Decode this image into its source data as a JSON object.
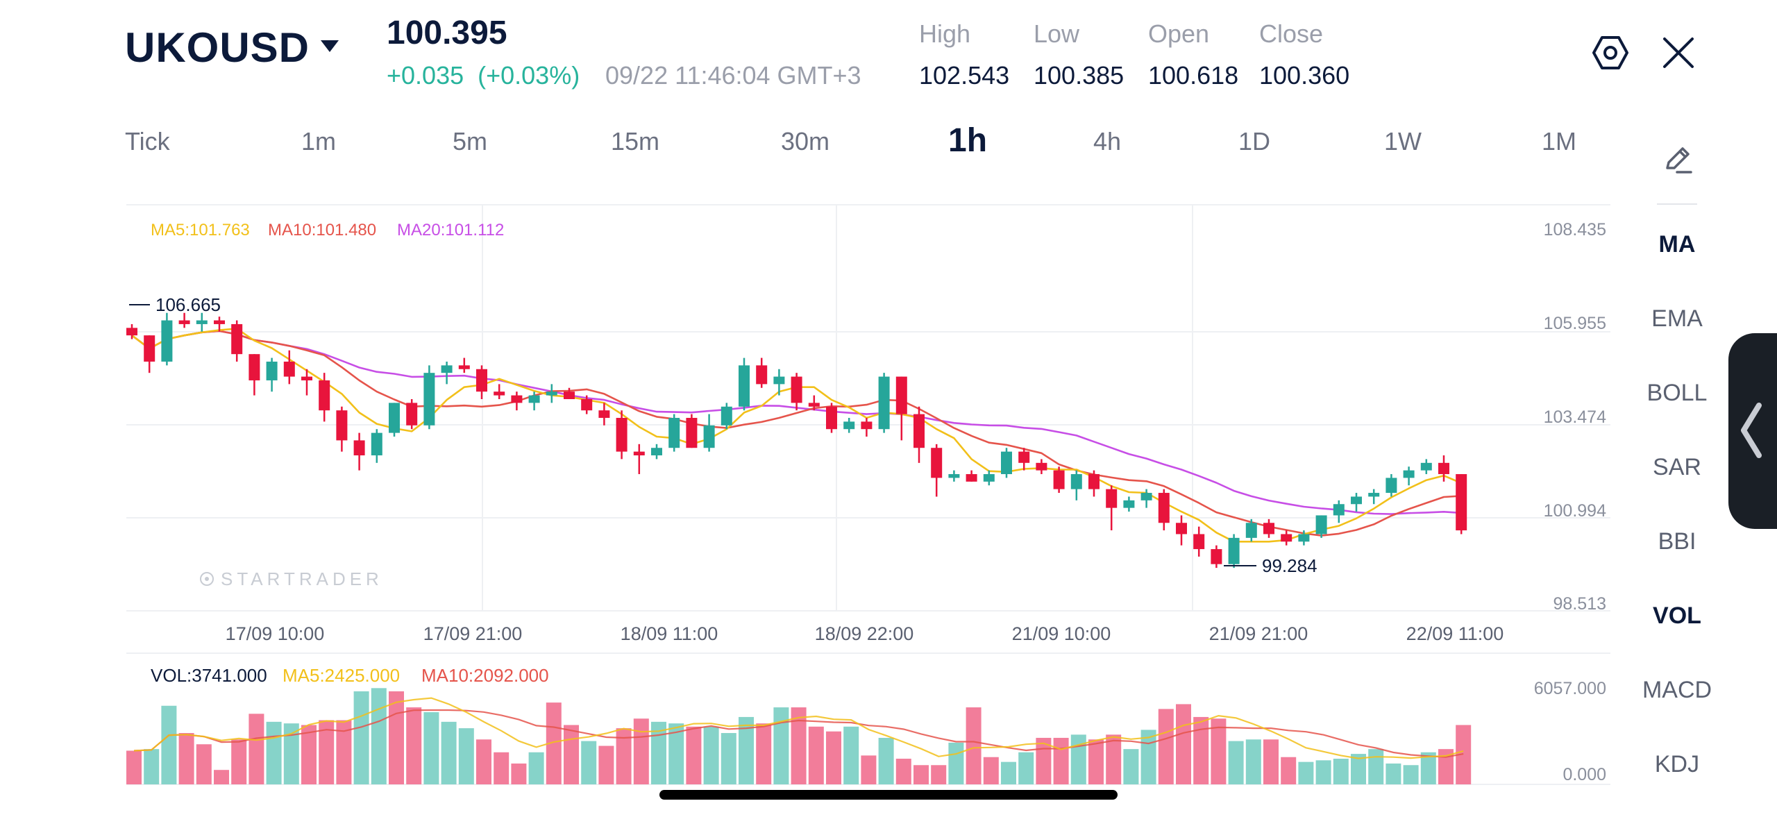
{
  "header": {
    "symbol": "UKOUSD",
    "price": "100.395",
    "change": "+0.035  (+0.03%)",
    "datetime": "09/22 11:46:04 GMT+3",
    "stats": [
      {
        "label": "High",
        "value": "102.543"
      },
      {
        "label": "Low",
        "value": "100.385"
      },
      {
        "label": "Open",
        "value": "100.618"
      },
      {
        "label": "Close",
        "value": "100.360"
      }
    ]
  },
  "timeframes": [
    "Tick",
    "1m",
    "5m",
    "15m",
    "30m",
    "1h",
    "4h",
    "1D",
    "1W",
    "1M"
  ],
  "active_timeframe": "1h",
  "indicators": [
    "MA",
    "EMA",
    "BOLL",
    "SAR",
    "BBI",
    "VOL",
    "MACD",
    "KDJ"
  ],
  "active_indicators": [
    "MA",
    "VOL"
  ],
  "colors": {
    "up": "#26a69a",
    "down": "#e8143c",
    "ma5": "#f2c01a",
    "ma10": "#e5544b",
    "ma20": "#c74ee6",
    "vol_up": "#86d3c9",
    "vol_down": "#f27d9a"
  },
  "icons": {
    "settings": "hexagon-gear-icon",
    "close": "close-icon",
    "draw": "pencil-icon",
    "drawer": "chevron-left-icon",
    "symbol_menu": "caret-down-icon"
  },
  "chart_data": [
    {
      "type": "candlestick",
      "legend": {
        "ma5": "MA5:101.763",
        "ma10": "MA10:101.480",
        "ma20": "MA20:101.112"
      },
      "y_ticks": [
        "108.435",
        "105.955",
        "103.474",
        "100.994",
        "98.513"
      ],
      "ylim": [
        98.513,
        108.435
      ],
      "x_ticks": [
        "17/09 10:00",
        "17/09 21:00",
        "18/09 11:00",
        "18/09 22:00",
        "21/09 10:00",
        "21/09 21:00",
        "22/09 11:00"
      ],
      "annotations": {
        "max": "106.665",
        "min": "99.284"
      },
      "watermark": "STARTRADER",
      "candles": [
        [
          105.8,
          105.9,
          105.5,
          105.6
        ],
        [
          105.6,
          105.6,
          104.6,
          104.9
        ],
        [
          104.9,
          106.2,
          104.8,
          106.0
        ],
        [
          106.0,
          106.2,
          105.8,
          105.9
        ],
        [
          105.9,
          106.2,
          105.7,
          106.0
        ],
        [
          106.0,
          106.1,
          105.7,
          105.9
        ],
        [
          105.9,
          106.0,
          104.9,
          105.1
        ],
        [
          105.1,
          105.1,
          104.0,
          104.4
        ],
        [
          104.4,
          105.0,
          104.1,
          104.9
        ],
        [
          104.9,
          105.2,
          104.3,
          104.5
        ],
        [
          104.5,
          104.7,
          104.0,
          104.4
        ],
        [
          104.4,
          104.6,
          103.3,
          103.6
        ],
        [
          103.6,
          103.7,
          102.5,
          102.8
        ],
        [
          102.8,
          103.0,
          102.0,
          102.4
        ],
        [
          102.4,
          103.1,
          102.2,
          103.0
        ],
        [
          103.0,
          103.8,
          102.9,
          103.8
        ],
        [
          103.8,
          103.9,
          103.1,
          103.2
        ],
        [
          103.2,
          104.8,
          103.1,
          104.6
        ],
        [
          104.6,
          104.9,
          104.3,
          104.8
        ],
        [
          104.8,
          105.0,
          104.6,
          104.7
        ],
        [
          104.7,
          104.8,
          103.9,
          104.1
        ],
        [
          104.1,
          104.3,
          103.9,
          104.0
        ],
        [
          104.0,
          104.1,
          103.6,
          103.8
        ],
        [
          103.8,
          104.1,
          103.6,
          104.0
        ],
        [
          104.0,
          104.3,
          103.8,
          104.1
        ],
        [
          104.1,
          104.2,
          103.9,
          103.9
        ],
        [
          103.9,
          104.0,
          103.5,
          103.6
        ],
        [
          103.6,
          103.8,
          103.2,
          103.4
        ],
        [
          103.4,
          103.6,
          102.3,
          102.5
        ],
        [
          102.5,
          102.7,
          101.9,
          102.4
        ],
        [
          102.4,
          102.7,
          102.3,
          102.6
        ],
        [
          102.6,
          103.5,
          102.5,
          103.4
        ],
        [
          103.4,
          103.5,
          102.6,
          102.6
        ],
        [
          102.6,
          103.5,
          102.5,
          103.2
        ],
        [
          103.2,
          103.8,
          103.1,
          103.7
        ],
        [
          103.7,
          105.0,
          103.6,
          104.8
        ],
        [
          104.8,
          105.0,
          104.2,
          104.3
        ],
        [
          104.3,
          104.7,
          104.0,
          104.5
        ],
        [
          104.5,
          104.6,
          103.6,
          103.8
        ],
        [
          103.8,
          104.0,
          103.6,
          103.7
        ],
        [
          103.7,
          103.8,
          103.0,
          103.1
        ],
        [
          103.1,
          103.4,
          103.0,
          103.3
        ],
        [
          103.3,
          103.4,
          102.9,
          103.1
        ],
        [
          103.1,
          104.6,
          103.0,
          104.5
        ],
        [
          104.5,
          104.5,
          102.8,
          103.5
        ],
        [
          103.5,
          103.7,
          102.2,
          102.6
        ],
        [
          102.6,
          102.7,
          101.3,
          101.8
        ],
        [
          101.8,
          102.0,
          101.7,
          101.9
        ],
        [
          101.9,
          102.0,
          101.7,
          101.7
        ],
        [
          101.7,
          102.0,
          101.6,
          101.9
        ],
        [
          101.9,
          102.6,
          101.8,
          102.5
        ],
        [
          102.5,
          102.6,
          102.0,
          102.2
        ],
        [
          102.2,
          102.3,
          101.9,
          102.0
        ],
        [
          102.0,
          102.1,
          101.4,
          101.5
        ],
        [
          101.5,
          102.0,
          101.2,
          101.9
        ],
        [
          101.9,
          102.0,
          101.3,
          101.5
        ],
        [
          101.5,
          101.6,
          100.4,
          101.0
        ],
        [
          101.0,
          101.3,
          100.9,
          101.2
        ],
        [
          101.2,
          101.5,
          101.0,
          101.4
        ],
        [
          101.4,
          101.5,
          100.4,
          100.6
        ],
        [
          100.6,
          100.8,
          100.0,
          100.3
        ],
        [
          100.3,
          100.5,
          99.7,
          99.9
        ],
        [
          99.9,
          100.0,
          99.4,
          99.5
        ],
        [
          99.5,
          100.3,
          99.4,
          100.2
        ],
        [
          100.2,
          100.7,
          100.1,
          100.6
        ],
        [
          100.6,
          100.7,
          100.2,
          100.3
        ],
        [
          100.3,
          100.4,
          100.0,
          100.1
        ],
        [
          100.1,
          100.4,
          100.0,
          100.3
        ],
        [
          100.3,
          100.8,
          100.2,
          100.8
        ],
        [
          100.8,
          101.2,
          100.6,
          101.1
        ],
        [
          101.1,
          101.4,
          100.9,
          101.3
        ],
        [
          101.3,
          101.5,
          101.1,
          101.4
        ],
        [
          101.4,
          101.9,
          101.3,
          101.8
        ],
        [
          101.8,
          102.1,
          101.6,
          102.0
        ],
        [
          102.0,
          102.3,
          101.9,
          102.2
        ],
        [
          102.2,
          102.4,
          101.7,
          101.9
        ],
        [
          101.9,
          101.9,
          100.3,
          100.4
        ]
      ]
    },
    {
      "type": "bar",
      "name": "volume",
      "legend": {
        "vol": "VOL:3741.000",
        "ma5": "MA5:2425.000",
        "ma10": "MA10:2092.000"
      },
      "y_ticks": [
        "6057.000",
        "0.000"
      ],
      "ylim": [
        0,
        6057
      ],
      "values": [
        2100,
        2200,
        4900,
        3200,
        2500,
        900,
        2800,
        4400,
        3900,
        3800,
        3700,
        4000,
        4000,
        5800,
        6000,
        5800,
        4800,
        4500,
        3900,
        3500,
        2800,
        2000,
        1300,
        2000,
        5100,
        3700,
        2700,
        2400,
        3500,
        4100,
        3900,
        3800,
        3600,
        3600,
        3200,
        4200,
        3800,
        4800,
        4800,
        3600,
        3300,
        3600,
        1800,
        2900,
        1600,
        1200,
        1200,
        2600,
        4800,
        1700,
        1400,
        2000,
        2900,
        2900,
        3100,
        2800,
        3100,
        2200,
        3400,
        4700,
        5000,
        4200,
        4100,
        2700,
        2800,
        2800,
        1700,
        1400,
        1500,
        1600,
        1900,
        2200,
        1300,
        1200,
        2000,
        2200,
        3700
      ],
      "up": [
        false,
        true,
        true,
        false,
        false,
        false,
        false,
        false,
        true,
        true,
        false,
        false,
        false,
        true,
        true,
        false,
        false,
        true,
        true,
        true,
        false,
        false,
        false,
        true,
        false,
        false,
        true,
        false,
        false,
        false,
        true,
        true,
        false,
        true,
        true,
        true,
        false,
        true,
        false,
        false,
        false,
        true,
        false,
        true,
        false,
        false,
        false,
        true,
        false,
        false,
        true,
        true,
        false,
        false,
        true,
        false,
        false,
        true,
        true,
        false,
        false,
        false,
        false,
        true,
        true,
        false,
        false,
        true,
        true,
        true,
        true,
        true,
        true,
        true,
        true,
        false,
        false
      ]
    }
  ]
}
